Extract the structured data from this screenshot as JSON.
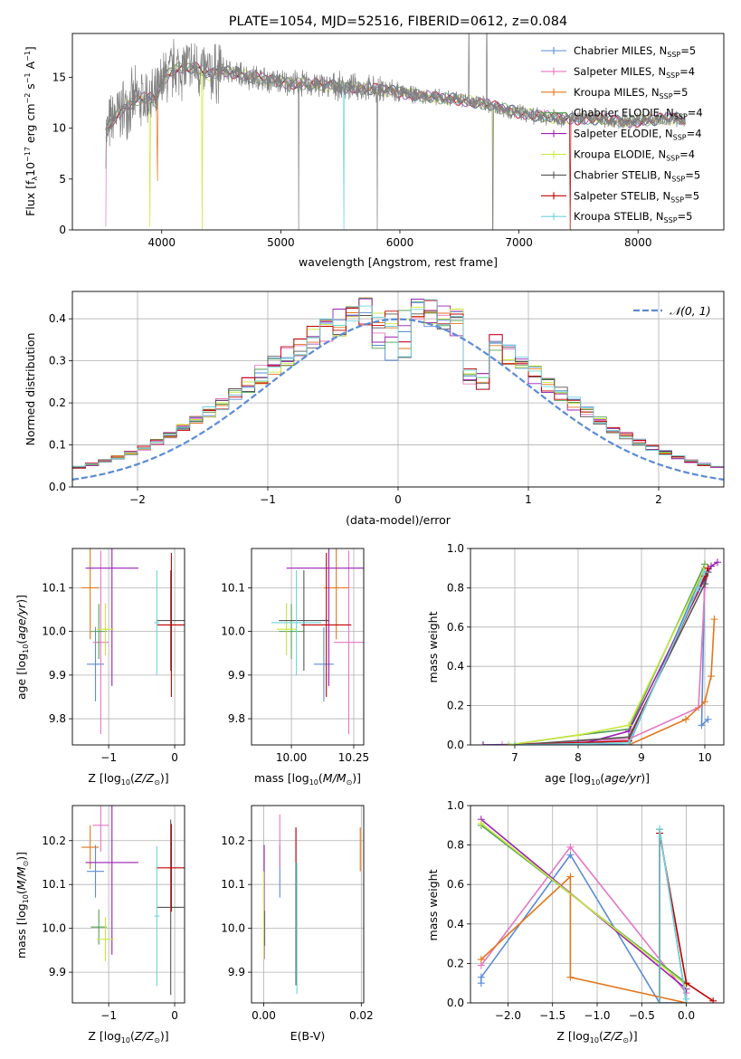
{
  "figure": {
    "title": "PLATE=1054, MJD=52516, FIBERID=0612, z=0.084"
  },
  "colors": {
    "Chabrier MILES": "#5b8bd6",
    "Salpeter MILES": "#e377c2",
    "Kroupa MILES": "#e2761c",
    "Chabrier ELODIE": "#54a054",
    "Salpeter ELODIE": "#9a1fb5",
    "Kroupa ELODIE": "#c6e83a",
    "Chabrier STELIB": "#555555",
    "Salpeter STELIB": "#c00000",
    "Kroupa STELIB": "#6fd3dd",
    "spectrum": "#808080",
    "gaussian": "#5b8bd6",
    "grid": "#b0b0b0"
  },
  "chart_data": [
    {
      "id": "spectrum",
      "type": "line",
      "title": "PLATE=1054, MJD=52516, FIBERID=0612, z=0.084",
      "xlabel": "wavelength [Angstrom, rest frame]",
      "ylabel_parts": [
        "Flux [f",
        "λ",
        "10",
        "−17",
        " erg cm",
        "−2",
        " s",
        "−1",
        " A",
        "−1",
        "]"
      ],
      "xlim": [
        3250,
        8720
      ],
      "ylim": [
        0,
        19.3
      ],
      "xticks": [
        4000,
        5000,
        6000,
        7000,
        8000
      ],
      "yticks": [
        0,
        5,
        10,
        15
      ],
      "grid": false,
      "legend_position": "top-right",
      "legend": [
        {
          "label": "Chabrier MILES, N",
          "sub": "SSP",
          "tail": "=5"
        },
        {
          "label": "Salpeter MILES, N",
          "sub": "SSP",
          "tail": "=4"
        },
        {
          "label": "Kroupa MILES, N",
          "sub": "SSP",
          "tail": "=5"
        },
        {
          "label": "Chabrier ELODIE, N",
          "sub": "SSP",
          "tail": "=4"
        },
        {
          "label": "Salpeter ELODIE, N",
          "sub": "SSP",
          "tail": "=4"
        },
        {
          "label": "Kroupa ELODIE, N",
          "sub": "SSP",
          "tail": "=4"
        },
        {
          "label": "Chabrier STELIB, N",
          "sub": "SSP",
          "tail": "=5"
        },
        {
          "label": "Salpeter STELIB, N",
          "sub": "SSP",
          "tail": "=5"
        },
        {
          "label": "Kroupa STELIB, N",
          "sub": "SSP",
          "tail": "=5"
        }
      ],
      "continuum": {
        "wavelength": [
          3530,
          3600,
          3700,
          3800,
          3900,
          3950,
          4000,
          4100,
          4200,
          4300,
          4400,
          4500,
          4700,
          4900,
          5100,
          5300,
          5500,
          5700,
          5900,
          6100,
          6300,
          6500,
          6700,
          6900,
          7100,
          7300,
          7500,
          7700,
          7900,
          8100,
          8300,
          8400
        ],
        "flux": [
          9.5,
          11.0,
          12.2,
          12.8,
          13.0,
          12.6,
          14.5,
          15.8,
          16.0,
          15.9,
          15.2,
          15.7,
          15.2,
          14.7,
          14.4,
          14.3,
          14.1,
          13.9,
          13.7,
          13.3,
          13.0,
          12.8,
          12.4,
          11.8,
          11.3,
          11.0,
          10.9,
          10.9,
          10.6,
          10.8,
          11.0,
          10.8
        ]
      },
      "model_dips": [
        {
          "model": "Salpeter MILES",
          "wavelength": 3530,
          "flux": 0.3
        },
        {
          "model": "Kroupa ELODIE",
          "wavelength": 3900,
          "flux": 0.3
        },
        {
          "model": "Kroupa MILES",
          "wavelength": 3965,
          "flux": 4.8
        },
        {
          "model": "Kroupa ELODIE",
          "wavelength": 4340,
          "flux": 0.0
        },
        {
          "model": "Kroupa STELIB",
          "wavelength": 5530,
          "flux": 0.0
        },
        {
          "model": "Kroupa ELODIE",
          "wavelength": 6780,
          "flux": 0.0
        },
        {
          "model": "Salpeter STELIB",
          "wavelength": 7430,
          "flux": 0.0
        }
      ],
      "data_spikes": [
        {
          "wavelength": 5150,
          "flux": 0.0
        },
        {
          "wavelength": 5810,
          "flux": 0.0
        },
        {
          "wavelength": 6780,
          "flux": 0.0
        },
        {
          "wavelength": 6580,
          "flux": 19.3
        },
        {
          "wavelength": 6730,
          "flux": 19.3
        }
      ]
    },
    {
      "id": "residuals",
      "type": "histogram",
      "xlabel": "(data-model)/error",
      "ylabel": "Normed distribution",
      "xlim": [
        -2.5,
        2.5
      ],
      "ylim": [
        0,
        0.465
      ],
      "xticks": [
        -2,
        -1,
        0,
        1,
        2
      ],
      "xtick_labels": [
        "−2",
        "−1",
        "0",
        "1",
        "2"
      ],
      "yticks": [
        0.0,
        0.1,
        0.2,
        0.3,
        0.4
      ],
      "grid": true,
      "legend_position": "top-right",
      "legend": [
        {
          "label": "𝒩(0, 1)",
          "style": "dashed"
        }
      ],
      "bin_width": 0.1,
      "gaussian": {
        "mean": 0,
        "sigma": 1
      }
    },
    {
      "id": "age-vs-Z",
      "type": "errorbar",
      "xlabel_parts": [
        "Z [log",
        "10",
        "(",
        "Z/Z",
        "⊙",
        ")]"
      ],
      "ylabel_parts": [
        "age  [log",
        "10",
        "(",
        "age/yr",
        ")]"
      ],
      "xlim": [
        -1.55,
        0.15
      ],
      "ylim": [
        9.74,
        10.19
      ],
      "xticks": [
        -1,
        0
      ],
      "xtick_labels": [
        "−1",
        "0"
      ],
      "yticks": [
        9.8,
        9.9,
        10.0,
        10.1
      ],
      "grid": true,
      "points": [
        {
          "model": "Chabrier MILES",
          "x": -1.2,
          "xerr": 0.13,
          "y": 9.925,
          "yerr": 0.085
        },
        {
          "model": "Salpeter MILES",
          "x": -1.12,
          "xerr": 0.12,
          "y": 9.975,
          "yerr": 0.21
        },
        {
          "model": "Kroupa MILES",
          "x": -1.28,
          "xerr": 0.13,
          "y": 10.1,
          "yerr": 0.118
        },
        {
          "model": "Chabrier ELODIE",
          "x": -1.15,
          "xerr": 0.12,
          "y": 10.0,
          "yerr": 0.063
        },
        {
          "model": "Salpeter ELODIE",
          "x": -0.95,
          "xerr": 0.4,
          "y": 10.145,
          "yerr": 0.27
        },
        {
          "model": "Kroupa ELODIE",
          "x": -1.05,
          "xerr": 0.13,
          "y": 10.005,
          "yerr": 0.06
        },
        {
          "model": "Chabrier STELIB",
          "x": -0.06,
          "xerr": 0.22,
          "y": 10.025,
          "yerr": 0.115
        },
        {
          "model": "Salpeter STELIB",
          "x": -0.05,
          "xerr": 0.22,
          "y": 10.015,
          "yerr": 0.165
        },
        {
          "model": "Kroupa STELIB",
          "x": -0.27,
          "xerr": 0.04,
          "y": 10.02,
          "yerr": 0.12
        }
      ]
    },
    {
      "id": "age-vs-mass",
      "type": "errorbar",
      "xlabel_parts": [
        "mass [log",
        "10",
        "(",
        "M/M",
        "⊙",
        ")]"
      ],
      "xlim": [
        9.84,
        10.29
      ],
      "ylim": [
        9.74,
        10.19
      ],
      "xticks": [
        10.0,
        10.25
      ],
      "xtick_labels": [
        "10.00",
        "10.25"
      ],
      "yticks": [
        9.8,
        9.9,
        10.0,
        10.1
      ],
      "grid": true,
      "points": [
        {
          "model": "Chabrier MILES",
          "x": 10.13,
          "xerr": 0.04,
          "y": 9.925,
          "yerr": 0.085
        },
        {
          "model": "Salpeter MILES",
          "x": 10.23,
          "xerr": 0.06,
          "y": 9.975,
          "yerr": 0.21
        },
        {
          "model": "Kroupa MILES",
          "x": 10.18,
          "xerr": 0.05,
          "y": 10.1,
          "yerr": 0.118
        },
        {
          "model": "Chabrier ELODIE",
          "x": 10.0,
          "xerr": 0.05,
          "y": 10.0,
          "yerr": 0.063
        },
        {
          "model": "Salpeter ELODIE",
          "x": 10.15,
          "xerr": 0.17,
          "y": 10.145,
          "yerr": 0.27
        },
        {
          "model": "Kroupa ELODIE",
          "x": 9.98,
          "xerr": 0.04,
          "y": 10.005,
          "yerr": 0.06
        },
        {
          "model": "Chabrier STELIB",
          "x": 10.05,
          "xerr": 0.1,
          "y": 10.025,
          "yerr": 0.115
        },
        {
          "model": "Salpeter STELIB",
          "x": 10.14,
          "xerr": 0.1,
          "y": 10.015,
          "yerr": 0.165
        },
        {
          "model": "Kroupa STELIB",
          "x": 10.02,
          "xerr": 0.1,
          "y": 10.02,
          "yerr": 0.12
        }
      ]
    },
    {
      "id": "weight-vs-age",
      "type": "line",
      "xlabel_parts": [
        "age  [log",
        "10",
        "(",
        "age/yr",
        ")]"
      ],
      "ylabel": "mass weight",
      "xlim": [
        6.3,
        10.3
      ],
      "ylim": [
        0,
        1.0
      ],
      "xticks": [
        7,
        8,
        9,
        10
      ],
      "yticks": [
        0.0,
        0.2,
        0.4,
        0.6,
        0.8,
        1.0
      ],
      "grid": true,
      "series": [
        {
          "model": "Chabrier MILES",
          "x": [
            6.5,
            8.0,
            8.8,
            9.8,
            10.0,
            9.95,
            10.05
          ],
          "y": [
            0.0,
            0.01,
            0.0,
            0.75,
            0.9,
            0.1,
            0.13
          ]
        },
        {
          "model": "Salpeter MILES",
          "x": [
            6.8,
            8.8,
            9.9,
            10.0,
            10.05
          ],
          "y": [
            0.0,
            0.03,
            0.19,
            0.8,
            0.88
          ]
        },
        {
          "model": "Kroupa MILES",
          "x": [
            8.8,
            9.7,
            10.0,
            10.1,
            10.15
          ],
          "y": [
            0.0,
            0.13,
            0.22,
            0.35,
            0.64
          ]
        },
        {
          "model": "Chabrier ELODIE",
          "x": [
            6.9,
            8.0,
            8.8,
            10.0
          ],
          "y": [
            0.0,
            0.05,
            0.08,
            0.92
          ]
        },
        {
          "model": "Salpeter ELODIE",
          "x": [
            6.5,
            8.0,
            8.8,
            10.1,
            10.2
          ],
          "y": [
            0.0,
            0.0,
            0.07,
            0.91,
            0.93
          ]
        },
        {
          "model": "Kroupa ELODIE",
          "x": [
            6.9,
            8.0,
            8.8,
            10.0
          ],
          "y": [
            0.0,
            0.05,
            0.1,
            0.9
          ]
        },
        {
          "model": "Chabrier STELIB",
          "x": [
            7.0,
            8.8,
            10.0,
            10.05
          ],
          "y": [
            0.0,
            0.04,
            0.82,
            0.88
          ]
        },
        {
          "model": "Salpeter STELIB",
          "x": [
            7.0,
            8.8,
            10.0,
            10.05
          ],
          "y": [
            0.0,
            0.02,
            0.86,
            0.9
          ]
        },
        {
          "model": "Kroupa STELIB",
          "x": [
            7.0,
            8.8,
            9.9,
            10.0
          ],
          "y": [
            0.0,
            0.01,
            0.8,
            0.88
          ]
        }
      ]
    },
    {
      "id": "mass-vs-Z",
      "type": "errorbar",
      "xlabel_parts": [
        "Z [log",
        "10",
        "(",
        "Z/Z",
        "⊙",
        ")]"
      ],
      "ylabel_parts": [
        "mass [log",
        "10",
        "(",
        "M/M",
        "⊙",
        ")]"
      ],
      "xlim": [
        -1.55,
        0.15
      ],
      "ylim": [
        9.83,
        10.28
      ],
      "xticks": [
        -1,
        0
      ],
      "xtick_labels": [
        "−1",
        "0"
      ],
      "yticks": [
        9.9,
        10.0,
        10.1,
        10.2
      ],
      "grid": true,
      "points": [
        {
          "model": "Chabrier MILES",
          "x": -1.2,
          "xerr": 0.13,
          "y": 10.13,
          "yerr": 0.06
        },
        {
          "model": "Salpeter MILES",
          "x": -1.12,
          "xerr": 0.12,
          "y": 10.235,
          "yerr": 0.06
        },
        {
          "model": "Kroupa MILES",
          "x": -1.28,
          "xerr": 0.13,
          "y": 10.185,
          "yerr": 0.05
        },
        {
          "model": "Chabrier ELODIE",
          "x": -1.15,
          "xerr": 0.12,
          "y": 10.003,
          "yerr": 0.04
        },
        {
          "model": "Salpeter ELODIE",
          "x": -0.95,
          "xerr": 0.4,
          "y": 10.15,
          "yerr": 0.21
        },
        {
          "model": "Kroupa ELODIE",
          "x": -1.05,
          "xerr": 0.13,
          "y": 9.975,
          "yerr": 0.05
        },
        {
          "model": "Chabrier STELIB",
          "x": -0.06,
          "xerr": 0.2,
          "y": 10.048,
          "yerr": 0.2
        },
        {
          "model": "Salpeter STELIB",
          "x": -0.05,
          "xerr": 0.23,
          "y": 10.138,
          "yerr": 0.1
        },
        {
          "model": "Kroupa STELIB",
          "x": -0.27,
          "xerr": 0.04,
          "y": 10.028,
          "yerr": 0.16
        }
      ]
    },
    {
      "id": "mass-vs-EBV",
      "type": "errorbar",
      "xlabel": "E(B-V)",
      "xlim": [
        -0.0025,
        0.0205
      ],
      "ylim": [
        9.83,
        10.28
      ],
      "xticks": [
        0.0,
        0.02
      ],
      "xtick_labels": [
        "0.00",
        "0.02"
      ],
      "yticks": [
        9.9,
        10.0,
        10.1,
        10.2
      ],
      "grid": true,
      "points": [
        {
          "model": "Chabrier MILES",
          "x": 0.0033,
          "xerr": 0,
          "y": 10.13,
          "yerr": 0.06
        },
        {
          "model": "Salpeter MILES",
          "x": 0.0033,
          "xerr": 0,
          "y": 10.2,
          "yerr": 0.06
        },
        {
          "model": "Kroupa MILES",
          "x": 0.0198,
          "xerr": 0,
          "y": 10.18,
          "yerr": 0.05
        },
        {
          "model": "Chabrier ELODIE",
          "x": 0.0002,
          "xerr": 0,
          "y": 10.0,
          "yerr": 0.04
        },
        {
          "model": "Salpeter ELODIE",
          "x": 0.0001,
          "xerr": 0,
          "y": 10.06,
          "yerr": 0.13
        },
        {
          "model": "Kroupa ELODIE",
          "x": 0.0,
          "xerr": 0,
          "y": 10.03,
          "yerr": 0.1
        },
        {
          "model": "Chabrier STELIB",
          "x": 0.0066,
          "xerr": 0,
          "y": 10.05,
          "yerr": 0.18
        },
        {
          "model": "Salpeter STELIB",
          "x": 0.0066,
          "xerr": 0,
          "y": 10.19,
          "yerr": 0.04
        },
        {
          "model": "Kroupa STELIB",
          "x": 0.0068,
          "xerr": 0,
          "y": 10.0,
          "yerr": 0.15
        }
      ]
    },
    {
      "id": "weight-vs-Z",
      "type": "line",
      "xlabel_parts": [
        "Z [log",
        "10",
        "(",
        "Z/Z",
        "⊙",
        ")]"
      ],
      "ylabel": "mass weight",
      "xlim": [
        -2.42,
        0.42
      ],
      "ylim": [
        0,
        1.0
      ],
      "xticks": [
        -2.0,
        -1.5,
        -1.0,
        -0.5,
        0.0
      ],
      "xtick_labels": [
        "−2.0",
        "−1.5",
        "−1.0",
        "−0.5",
        "0.0"
      ],
      "yticks": [
        0.0,
        0.2,
        0.4,
        0.6,
        0.8,
        1.0
      ],
      "grid": true,
      "series": [
        {
          "model": "Chabrier MILES",
          "x": [
            -2.3,
            -2.3,
            -1.3,
            -0.3,
            0.0
          ],
          "y": [
            0.1,
            0.13,
            0.75,
            0.0,
            0.0
          ]
        },
        {
          "model": "Salpeter MILES",
          "x": [
            -2.3,
            -1.3,
            0.0,
            0.0
          ],
          "y": [
            0.19,
            0.79,
            0.05,
            0.0
          ]
        },
        {
          "model": "Kroupa MILES",
          "x": [
            -2.3,
            -1.3,
            -1.3,
            0.0
          ],
          "y": [
            0.22,
            0.64,
            0.13,
            0.0
          ]
        },
        {
          "model": "Chabrier ELODIE",
          "x": [
            -2.3,
            0.0
          ],
          "y": [
            0.9,
            0.1
          ]
        },
        {
          "model": "Salpeter ELODIE",
          "x": [
            -2.3,
            0.0
          ],
          "y": [
            0.93,
            0.07
          ]
        },
        {
          "model": "Kroupa ELODIE",
          "x": [
            -2.3,
            0.0
          ],
          "y": [
            0.91,
            0.09
          ]
        },
        {
          "model": "Chabrier STELIB",
          "x": [
            -0.3,
            -0.3,
            0.0
          ],
          "y": [
            0.0,
            0.88,
            0.0
          ]
        },
        {
          "model": "Salpeter STELIB",
          "x": [
            -0.3,
            -0.3,
            0.0,
            0.3
          ],
          "y": [
            0.0,
            0.86,
            0.1,
            0.01
          ]
        },
        {
          "model": "Kroupa STELIB",
          "x": [
            -0.3,
            -0.3,
            0.0,
            0.0
          ],
          "y": [
            0.0,
            0.88,
            0.0,
            0.02
          ]
        }
      ]
    }
  ]
}
